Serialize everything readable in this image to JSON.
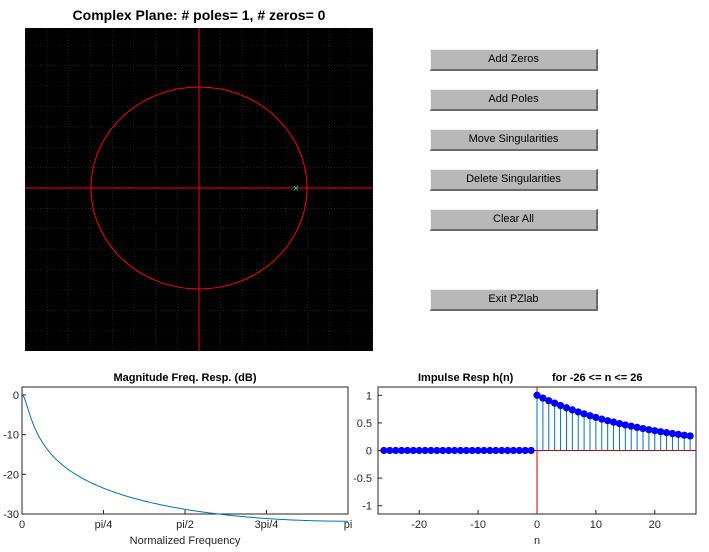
{
  "pz_plot": {
    "title": "Complex Plane:  # poles= 1,  # zeros= 0",
    "pole_marker": "×",
    "colors": {
      "background": "#000000",
      "axes": "#ff0000",
      "circle": "#ff0000",
      "grid": "#2a2a2a",
      "pole": "#00e0e0"
    }
  },
  "buttons": {
    "add_zeros": "Add Zeros",
    "add_poles": "Add Poles",
    "move_singularities": "Move Singularities",
    "delete_singularities": "Delete Singularities",
    "clear_all": "Clear All",
    "exit": "Exit PZlab"
  },
  "chart_data": [
    {
      "type": "line",
      "title": "Magnitude Freq. Resp. (dB)",
      "xlabel": "Normalized Frequency",
      "ylabel": "",
      "xticks": [
        "0",
        "pi/4",
        "pi/2",
        "3pi/4",
        "pi"
      ],
      "yticks": [
        "0",
        "-10",
        "-20",
        "-30"
      ],
      "xlim": [
        0,
        3.14159
      ],
      "ylim": [
        -30,
        2
      ],
      "pole_radius": 0.95,
      "series": [
        {
          "color": "#0072bd"
        }
      ]
    },
    {
      "type": "stem",
      "title": "Impulse Resp h(n)",
      "title_suffix": "for -26 <= n <= 26",
      "xlabel": "n",
      "xticks": [
        "-20",
        "-10",
        "0",
        "10",
        "20"
      ],
      "yticks": [
        "1",
        "0.5",
        "0",
        "-0.5",
        "-1"
      ],
      "xlim": [
        -27,
        27
      ],
      "ylim": [
        -1.15,
        1.15
      ],
      "n": [
        -26,
        26
      ],
      "decay": 0.95,
      "colors": {
        "stem": "#0072bd",
        "marker": "#0000ff",
        "axes": "#cc0000"
      }
    }
  ]
}
